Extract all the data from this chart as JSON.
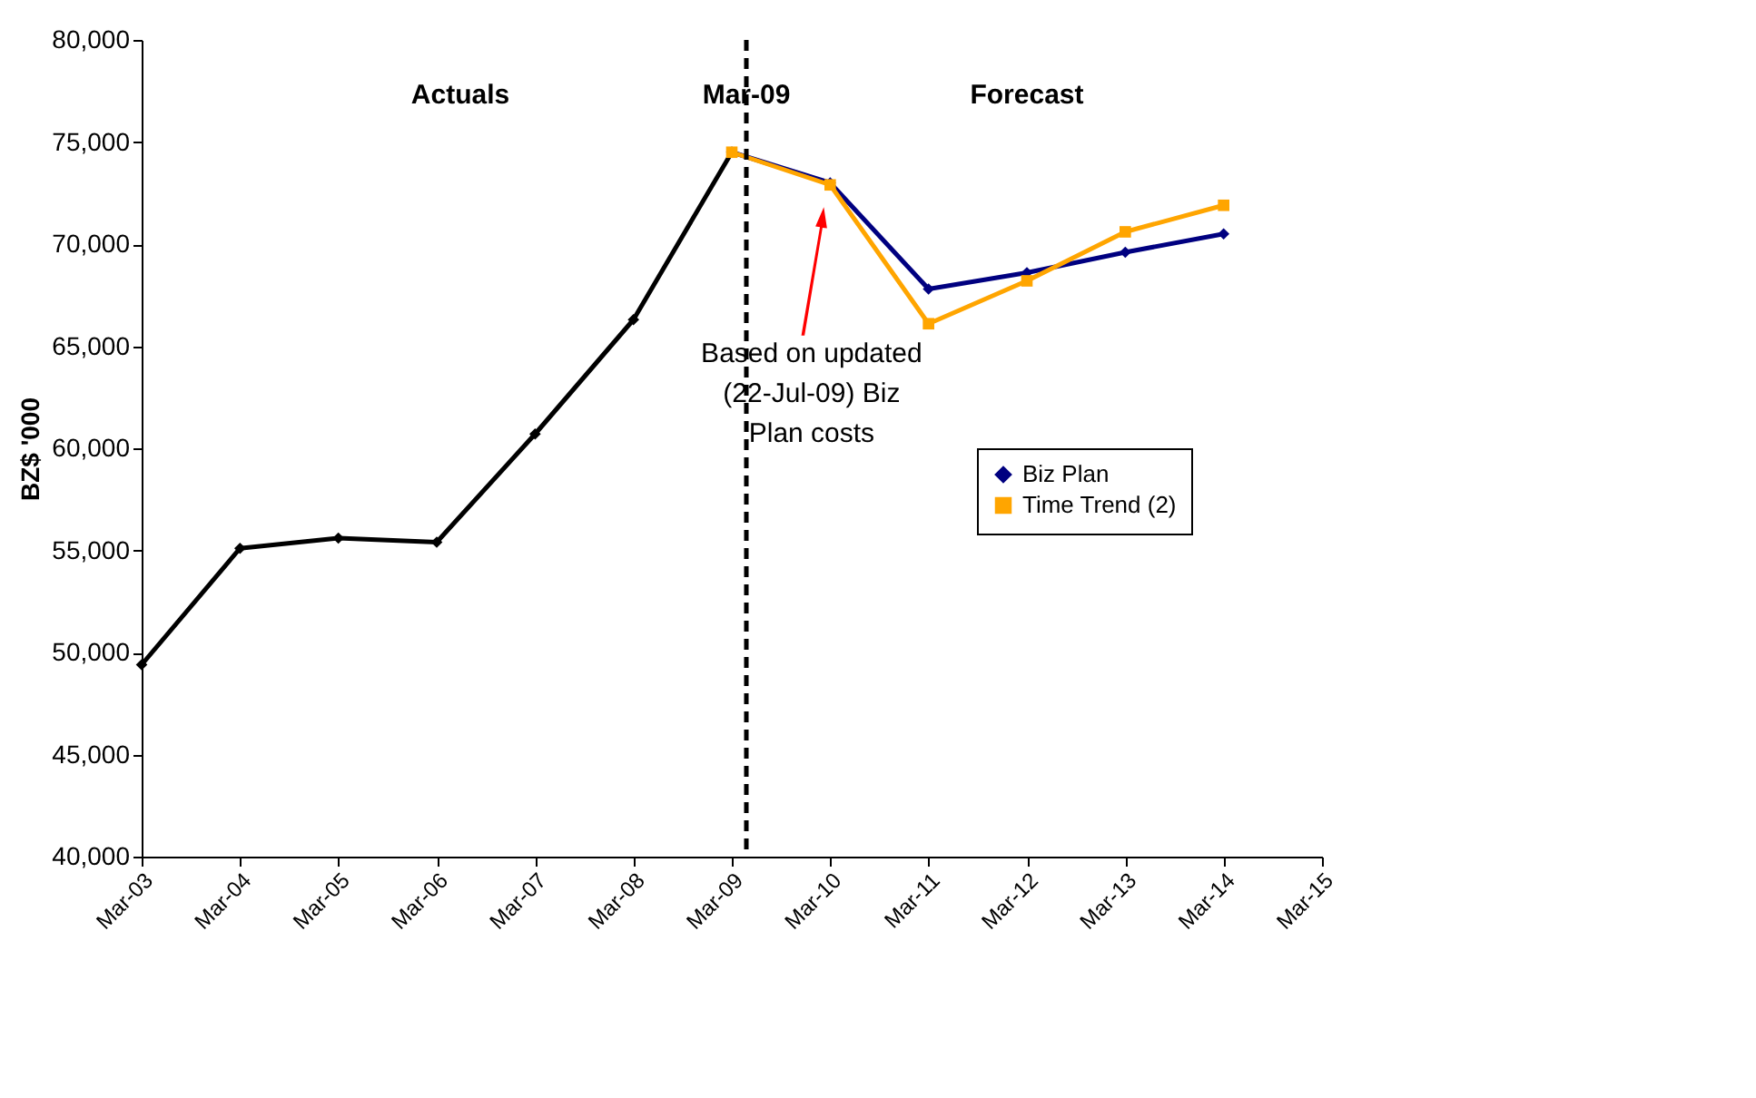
{
  "chart_data": {
    "type": "line",
    "ylabel": "BZ$ '000",
    "categories": [
      "Mar-03",
      "Mar-04",
      "Mar-05",
      "Mar-06",
      "Mar-07",
      "Mar-08",
      "Mar-09",
      "Mar-10",
      "Mar-11",
      "Mar-12",
      "Mar-13",
      "Mar-14",
      "Mar-15"
    ],
    "series": [
      {
        "color": "#000000",
        "marker": "diamond",
        "values": [
          49400,
          55100,
          55600,
          55400,
          60700,
          66300,
          74500,
          null,
          null,
          null,
          null,
          null,
          null
        ]
      },
      {
        "name": "Biz Plan",
        "color": "#000080",
        "marker": "diamond",
        "values": [
          null,
          null,
          null,
          null,
          null,
          null,
          74500,
          73000,
          67800,
          68600,
          69600,
          70500,
          null
        ]
      },
      {
        "name": "Time Trend (2)",
        "color": "#ffa500",
        "marker": "square",
        "values": [
          null,
          null,
          null,
          null,
          null,
          null,
          74500,
          72900,
          66100,
          68200,
          70600,
          71900,
          null
        ]
      }
    ],
    "ylim": [
      40000,
      80000
    ],
    "yticks": [
      {
        "value": 40000,
        "label": "40,000"
      },
      {
        "value": 45000,
        "label": "45,000"
      },
      {
        "value": 50000,
        "label": "50,000"
      },
      {
        "value": 55000,
        "label": "55,000"
      },
      {
        "value": 60000,
        "label": "60,000"
      },
      {
        "value": 65000,
        "label": "65,000"
      },
      {
        "value": 70000,
        "label": "70,000"
      },
      {
        "value": 75000,
        "label": "75,000"
      },
      {
        "value": 80000,
        "label": "80,000"
      }
    ],
    "ref_lines": [
      {
        "axis": "x",
        "value": "Mar-09",
        "label": "Mar-09",
        "color": "#000000",
        "line_style": "dashed"
      }
    ],
    "annotations": [
      "Actuals",
      "Forecast",
      "Based on updated (22-Jul-09) Biz Plan costs"
    ],
    "legend": "right",
    "grid": false,
    "line_style": "solid"
  }
}
